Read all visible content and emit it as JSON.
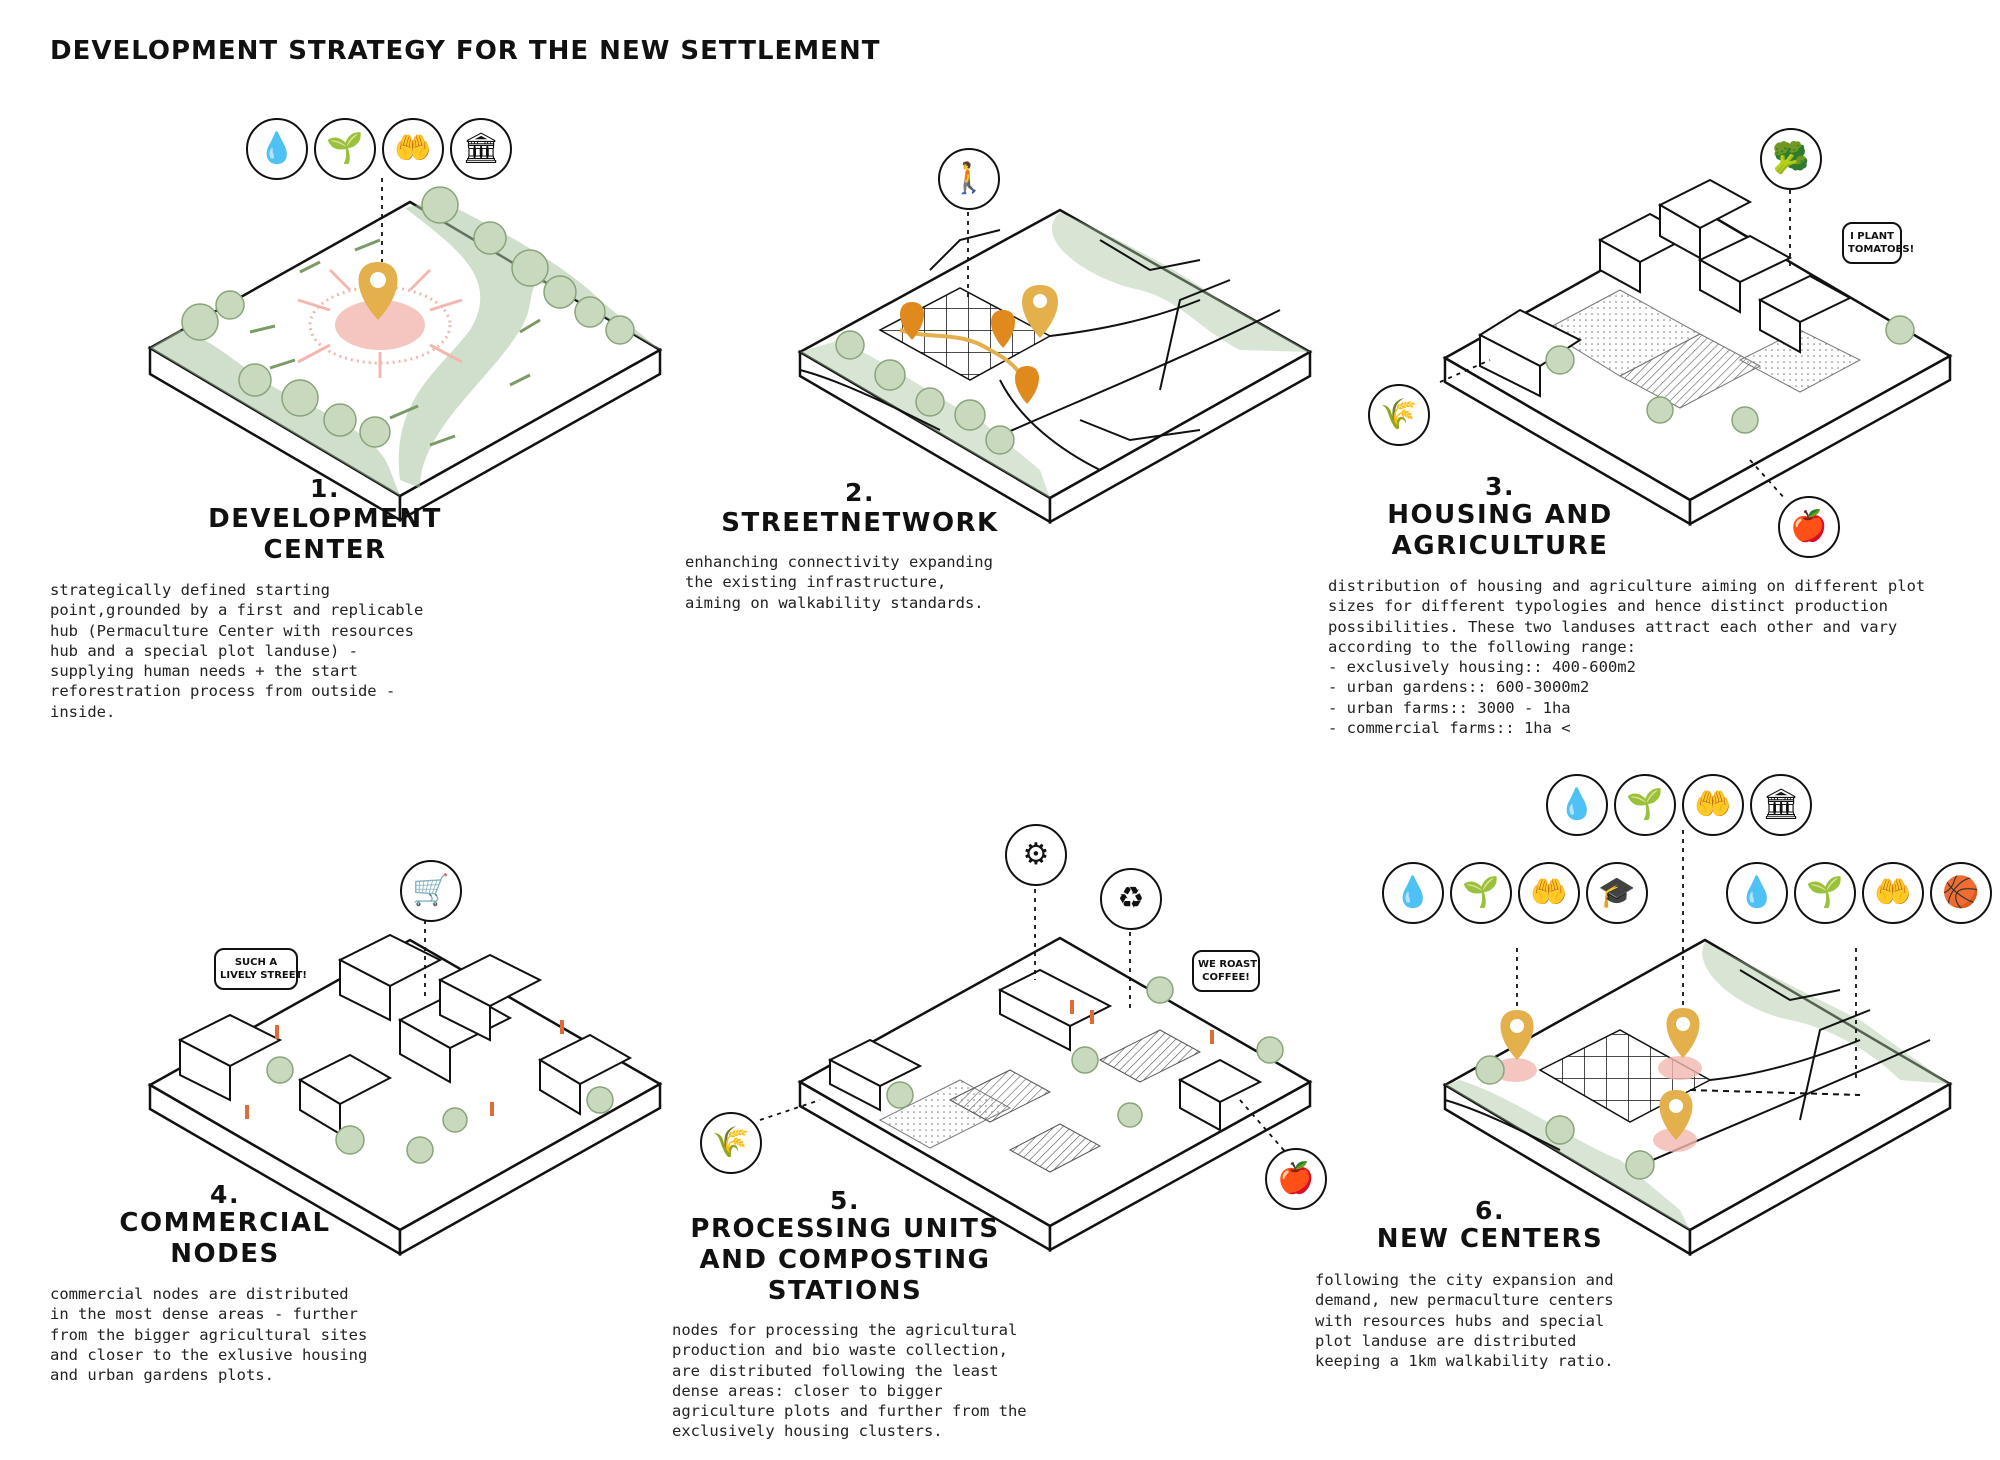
{
  "title": "DEVELOPMENT STRATEGY FOR THE NEW SETTLEMENT",
  "panels": [
    {
      "number": "1.",
      "heading": "DEVELOPMENT\nCENTER",
      "text": "strategically defined starting\npoint,grounded by a first and replicable\nhub (Permaculture Center with resources\nhub and a special plot landuse) -\nsupplying human needs + the start\nreforestration process from outside -\ninside."
    },
    {
      "number": "2.",
      "heading": "STREETNETWORK",
      "text": "enhanching connectivity expanding\nthe existing infrastructure,\naiming on walkability standards."
    },
    {
      "number": "3.",
      "heading": "HOUSING AND\nAGRICULTURE",
      "text": "distribution of housing and agriculture aiming on different plot\nsizes for different typologies and hence distinct production\npossibilities. These two landuses attract each other and vary\naccording to the following range:\n- exclusively housing:: 400-600m2\n- urban gardens:: 600-3000m2\n- urban farms:: 3000 - 1ha\n- commercial farms:: 1ha <"
    },
    {
      "number": "4.",
      "heading": "COMMERCIAL\nNODES",
      "text": "commercial nodes are distributed\nin the most dense areas - further\nfrom the bigger agricultural sites\nand closer to the exlusive housing\nand urban gardens plots."
    },
    {
      "number": "5.",
      "heading": "PROCESSING UNITS\nAND COMPOSTING\nSTATIONS",
      "text": "nodes for processing the agricultural\nproduction and bio waste collection,\nare distributed following the least\ndense areas: closer to bigger\nagriculture plots and further from the\nexclusively housing clusters."
    },
    {
      "number": "6.",
      "heading": "NEW CENTERS",
      "text": "following the city expansion and\ndemand, new permaculture centers\nwith resources hubs and special\nplot landuse are distributed\nkeeping a 1km walkability ratio."
    }
  ],
  "bubbles": {
    "tomatoes": "I PLANT\nTOMATOES!",
    "lively": "SUCH A\nLIVELY STREET!",
    "coffee": "WE ROAST\nCOFFEE!"
  },
  "icons": {
    "water": "💧",
    "plant": "🌱",
    "hand_plant": "🤲",
    "institution": "🏛",
    "walk": "🚶",
    "vegetables": "🥦",
    "wheat": "🌾",
    "apple": "🍎",
    "cart": "🛒",
    "grinder": "⚙",
    "compost": "♻",
    "education": "🎓",
    "sport": "🏀"
  },
  "colors": {
    "pin": "#e3b04b",
    "pin_orange": "#e08a1e",
    "green": "#a9c4a0",
    "pink": "#f2b8b0",
    "arrow_green": "#7a9a66",
    "arrow_orange": "#e06a3a"
  }
}
